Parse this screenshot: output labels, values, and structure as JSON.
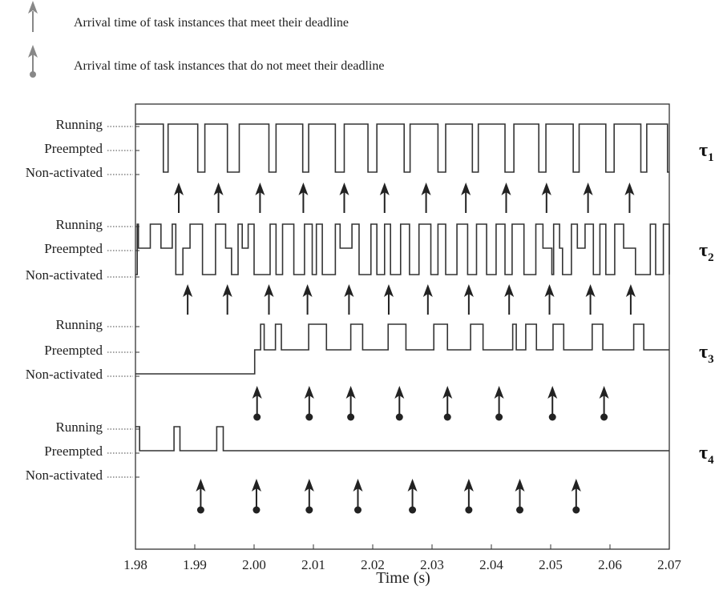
{
  "legend": {
    "met": "Arrival time of task instances that meet their deadline",
    "missed": "Arrival time of task instances that do not meet their deadline"
  },
  "chart_data": {
    "type": "line",
    "title": "",
    "xlabel": "Time (s)",
    "ylabel": "",
    "xlim": [
      1.98,
      2.07
    ],
    "x_ticks": [
      "1.98",
      "1.99",
      "2.00",
      "2.01",
      "2.02",
      "2.03",
      "2.04",
      "2.05",
      "2.06",
      "2.07"
    ],
    "x_tick_values": [
      1.98,
      1.99,
      2.0,
      2.01,
      2.02,
      2.03,
      2.04,
      2.05,
      2.06,
      2.07
    ],
    "state_levels": [
      "Running",
      "Preempted",
      "Non-activated"
    ],
    "grid": false,
    "legend_position": "top-left",
    "series": [
      {
        "name": "τ1",
        "label_main": "τ",
        "label_sub": "1",
        "steps": [
          [
            1.98,
            "R"
          ],
          [
            1.9847,
            "N"
          ],
          [
            1.9855,
            "R"
          ],
          [
            1.9905,
            "N"
          ],
          [
            1.9917,
            "R"
          ],
          [
            1.9955,
            "N"
          ],
          [
            1.9975,
            "R"
          ],
          [
            2.0025,
            "N"
          ],
          [
            2.0037,
            "R"
          ],
          [
            2.0082,
            "N"
          ],
          [
            2.0092,
            "R"
          ],
          [
            2.0137,
            "N"
          ],
          [
            2.0152,
            "R"
          ],
          [
            2.0192,
            "N"
          ],
          [
            2.0207,
            "R"
          ],
          [
            2.0253,
            "N"
          ],
          [
            2.0263,
            "R"
          ],
          [
            2.031,
            "N"
          ],
          [
            2.0323,
            "R"
          ],
          [
            2.0368,
            "N"
          ],
          [
            2.0378,
            "R"
          ],
          [
            2.0423,
            "N"
          ],
          [
            2.0438,
            "R"
          ],
          [
            2.048,
            "N"
          ],
          [
            2.0492,
            "R"
          ],
          [
            2.0538,
            "N"
          ],
          [
            2.0548,
            "R"
          ],
          [
            2.0593,
            "N"
          ],
          [
            2.0607,
            "R"
          ],
          [
            2.0652,
            "N"
          ],
          [
            2.0662,
            "R"
          ],
          [
            2.0697,
            "N"
          ]
        ],
        "arrivals": [
          1.9873,
          1.994,
          2.001,
          2.0083,
          2.0152,
          2.022,
          2.029,
          2.0357,
          2.0425,
          2.0493,
          2.0563,
          2.0633
        ],
        "arrival_type": "met"
      },
      {
        "name": "τ2",
        "label_main": "τ",
        "label_sub": "2",
        "steps": [
          [
            1.98,
            "N"
          ],
          [
            1.9803,
            "R"
          ],
          [
            1.9805,
            "P"
          ],
          [
            1.9825,
            "R"
          ],
          [
            1.9843,
            "P"
          ],
          [
            1.9862,
            "R"
          ],
          [
            1.9868,
            "N"
          ],
          [
            1.988,
            "P"
          ],
          [
            1.9892,
            "R"
          ],
          [
            1.9913,
            "N"
          ],
          [
            1.9935,
            "R"
          ],
          [
            1.9952,
            "P"
          ],
          [
            1.9962,
            "N"
          ],
          [
            1.9973,
            "R"
          ],
          [
            1.998,
            "P"
          ],
          [
            1.999,
            "R"
          ],
          [
            2.0,
            "N"
          ],
          [
            2.0027,
            "R"
          ],
          [
            2.0037,
            "N"
          ],
          [
            2.0048,
            "R"
          ],
          [
            2.0067,
            "N"
          ],
          [
            2.0085,
            "R"
          ],
          [
            2.0098,
            "N"
          ],
          [
            2.0105,
            "R"
          ],
          [
            2.0115,
            "N"
          ],
          [
            2.0137,
            "R"
          ],
          [
            2.0145,
            "P"
          ],
          [
            2.0165,
            "R"
          ],
          [
            2.0177,
            "N"
          ],
          [
            2.0197,
            "R"
          ],
          [
            2.0207,
            "N"
          ],
          [
            2.022,
            "R"
          ],
          [
            2.023,
            "N"
          ],
          [
            2.0247,
            "R"
          ],
          [
            2.0262,
            "N"
          ],
          [
            2.0278,
            "R"
          ],
          [
            2.0298,
            "N"
          ],
          [
            2.031,
            "R"
          ],
          [
            2.0323,
            "N"
          ],
          [
            2.0342,
            "R"
          ],
          [
            2.036,
            "N"
          ],
          [
            2.0375,
            "R"
          ],
          [
            2.0392,
            "N"
          ],
          [
            2.0408,
            "R"
          ],
          [
            2.0423,
            "N"
          ],
          [
            2.0435,
            "R"
          ],
          [
            2.0455,
            "N"
          ],
          [
            2.0475,
            "R"
          ],
          [
            2.0487,
            "P"
          ],
          [
            2.0502,
            "N"
          ],
          [
            2.0505,
            "R"
          ],
          [
            2.0515,
            "P"
          ],
          [
            2.052,
            "N"
          ],
          [
            2.0535,
            "R"
          ],
          [
            2.0545,
            "P"
          ],
          [
            2.0558,
            "R"
          ],
          [
            2.0572,
            "N"
          ],
          [
            2.0583,
            "R"
          ],
          [
            2.0593,
            "N"
          ],
          [
            2.0608,
            "R"
          ],
          [
            2.0623,
            "P"
          ],
          [
            2.0643,
            "N"
          ],
          [
            2.0668,
            "R"
          ],
          [
            2.0677,
            "N"
          ],
          [
            2.069,
            "R"
          ],
          [
            2.07,
            "N"
          ]
        ],
        "arrivals": [
          1.9888,
          1.9955,
          2.0025,
          2.009,
          2.016,
          2.0227,
          2.0293,
          2.0362,
          2.043,
          2.0498,
          2.0567,
          2.0635
        ],
        "arrival_type": "met"
      },
      {
        "name": "τ3",
        "label_main": "τ",
        "label_sub": "3",
        "steps": [
          [
            1.98,
            "N"
          ],
          [
            2.0001,
            "P"
          ],
          [
            2.0011,
            "R"
          ],
          [
            2.0017,
            "P"
          ],
          [
            2.0036,
            "R"
          ],
          [
            2.0046,
            "P"
          ],
          [
            2.0092,
            "R"
          ],
          [
            2.0122,
            "P"
          ],
          [
            2.0163,
            "R"
          ],
          [
            2.0183,
            "P"
          ],
          [
            2.0226,
            "R"
          ],
          [
            2.0256,
            "P"
          ],
          [
            2.0303,
            "R"
          ],
          [
            2.0326,
            "P"
          ],
          [
            2.0365,
            "R"
          ],
          [
            2.0386,
            "P"
          ],
          [
            2.0436,
            "R"
          ],
          [
            2.0442,
            "P"
          ],
          [
            2.0458,
            "R"
          ],
          [
            2.0476,
            "P"
          ],
          [
            2.0504,
            "R"
          ],
          [
            2.0522,
            "P"
          ],
          [
            2.057,
            "R"
          ],
          [
            2.0588,
            "P"
          ],
          [
            2.064,
            "R"
          ],
          [
            2.0657,
            "P"
          ],
          [
            2.07,
            "P"
          ]
        ],
        "arrivals": [
          2.0005,
          2.0093,
          2.0163,
          2.0245,
          2.0326,
          2.0413,
          2.0503,
          2.059
        ],
        "arrival_type": "missed"
      },
      {
        "name": "τ4",
        "label_main": "τ",
        "label_sub": "4",
        "steps": [
          [
            1.98,
            "R"
          ],
          [
            1.9807,
            "P"
          ],
          [
            1.9865,
            "R"
          ],
          [
            1.9875,
            "P"
          ],
          [
            1.9937,
            "R"
          ],
          [
            1.9948,
            "P"
          ],
          [
            2.07,
            "P"
          ]
        ],
        "arrivals": [
          1.991,
          2.0004,
          2.0093,
          2.0175,
          2.0267,
          2.0362,
          2.0448,
          2.0543
        ],
        "arrival_type": "missed"
      }
    ]
  }
}
